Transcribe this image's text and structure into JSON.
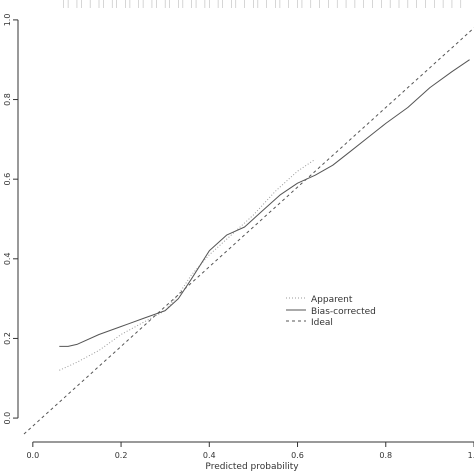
{
  "chart_data": {
    "type": "line",
    "title": "",
    "xlabel": "Predicted probability",
    "ylabel": "",
    "xlim": [
      -0.02,
      1.0
    ],
    "ylim": [
      -0.04,
      1.05
    ],
    "grid": false,
    "legend_position": "center-right",
    "x_ticks": [
      {
        "value": 0.0,
        "label": "0.0"
      },
      {
        "value": 0.2,
        "label": "0.2"
      },
      {
        "value": 0.4,
        "label": "0.4"
      },
      {
        "value": 0.6,
        "label": "0.6"
      },
      {
        "value": 0.8,
        "label": "0.8"
      },
      {
        "value": 1.0,
        "label": "1.0"
      }
    ],
    "y_ticks": [
      {
        "value": 0.0,
        "label": "0.0"
      },
      {
        "value": 0.2,
        "label": "0.2"
      },
      {
        "value": 0.4,
        "label": "0.4"
      },
      {
        "value": 0.6,
        "label": "0.6"
      },
      {
        "value": 0.8,
        "label": "0.8"
      },
      {
        "value": 1.0,
        "label": "1.0"
      }
    ],
    "series": [
      {
        "name": "Apparent",
        "style": "dotted",
        "color": "#9a9a9a",
        "x": [
          0.06,
          0.1,
          0.15,
          0.2,
          0.25,
          0.3,
          0.33,
          0.36,
          0.4,
          0.45,
          0.5,
          0.55,
          0.6,
          0.64
        ],
        "y": [
          0.12,
          0.14,
          0.17,
          0.21,
          0.24,
          0.27,
          0.31,
          0.36,
          0.41,
          0.46,
          0.51,
          0.57,
          0.62,
          0.65
        ]
      },
      {
        "name": "Bias-corrected",
        "style": "solid",
        "color": "#555555",
        "x": [
          0.06,
          0.08,
          0.1,
          0.15,
          0.2,
          0.25,
          0.3,
          0.33,
          0.36,
          0.4,
          0.44,
          0.48,
          0.52,
          0.56,
          0.6,
          0.64,
          0.68,
          0.72,
          0.76,
          0.8,
          0.85,
          0.9,
          0.95,
          0.99
        ],
        "y": [
          0.18,
          0.18,
          0.185,
          0.21,
          0.23,
          0.25,
          0.27,
          0.3,
          0.35,
          0.42,
          0.46,
          0.48,
          0.52,
          0.56,
          0.59,
          0.61,
          0.635,
          0.67,
          0.705,
          0.74,
          0.78,
          0.83,
          0.87,
          0.9
        ]
      },
      {
        "name": "Ideal",
        "style": "dashed",
        "color": "#555555",
        "x": [
          -0.02,
          1.0
        ],
        "y": [
          -0.04,
          0.98
        ]
      }
    ],
    "rug_x": [
      0.07,
      0.08,
      0.1,
      0.11,
      0.13,
      0.15,
      0.16,
      0.18,
      0.19,
      0.21,
      0.22,
      0.24,
      0.25,
      0.27,
      0.28,
      0.3,
      0.31,
      0.33,
      0.34,
      0.36,
      0.37,
      0.39,
      0.4,
      0.42,
      0.43,
      0.45,
      0.46,
      0.48,
      0.5,
      0.51,
      0.53,
      0.55,
      0.56,
      0.58,
      0.6,
      0.61,
      0.63,
      0.65,
      0.67,
      0.69,
      0.71,
      0.73,
      0.75,
      0.77,
      0.79,
      0.81,
      0.83,
      0.85,
      0.87,
      0.89,
      0.91,
      0.93,
      0.95,
      0.97
    ]
  }
}
